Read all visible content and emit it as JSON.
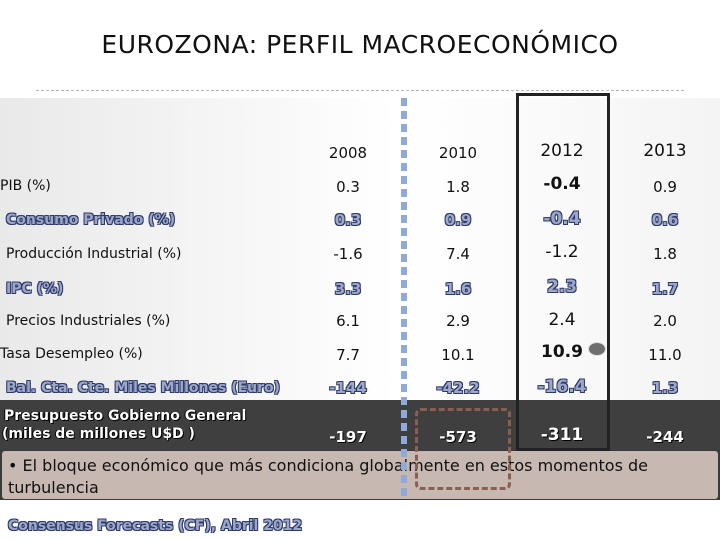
{
  "title": "EUROZONA: PERFIL MACROECONÓMICO",
  "years": [
    "2008",
    "2010",
    "2012",
    "2013"
  ],
  "rows": [
    {
      "label": "PIB (%)",
      "values": [
        "0.3",
        "1.8",
        "-0.4",
        "0.9"
      ]
    },
    {
      "label": "Consumo Privado (%)",
      "values": [
        "0.3",
        "0.9",
        "-0.4",
        "0.6"
      ]
    },
    {
      "label": "Producción Industrial (%)",
      "values": [
        "-1.6",
        "7.4",
        "-1.2",
        "1.8"
      ]
    },
    {
      "label": "IPC (%)",
      "values": [
        "3.3",
        "1.6",
        "2.3",
        "1.7"
      ]
    },
    {
      "label": "Precios Industriales (%)",
      "values": [
        "6.1",
        "2.9",
        "2.4",
        "2.0"
      ]
    },
    {
      "label": "Tasa Desempleo (%)",
      "values": [
        "7.7",
        "10.1",
        "10.9",
        "11.0"
      ]
    },
    {
      "label": "Bal. Cta. Cte. Miles Millones (Euro)",
      "values": [
        "-144",
        "-42.2",
        "-16.4",
        "1.3"
      ]
    },
    {
      "label_line1": "Presupuesto Gobierno  General",
      "label_line2": "(miles de millones U$D )",
      "values": [
        "-197",
        "-573",
        "-311",
        "-244"
      ]
    }
  ],
  "note": "• El bloque económico que más condiciona globalmente en estos momentos de turbulencia",
  "source": "Consensus Forecasts (CF), Abril 2012",
  "colors": {
    "band": "#3f3f3f",
    "note_bg": "#c7b9b2",
    "embossed": "#9da8c6",
    "dashed_frame": "#8a5f52"
  }
}
